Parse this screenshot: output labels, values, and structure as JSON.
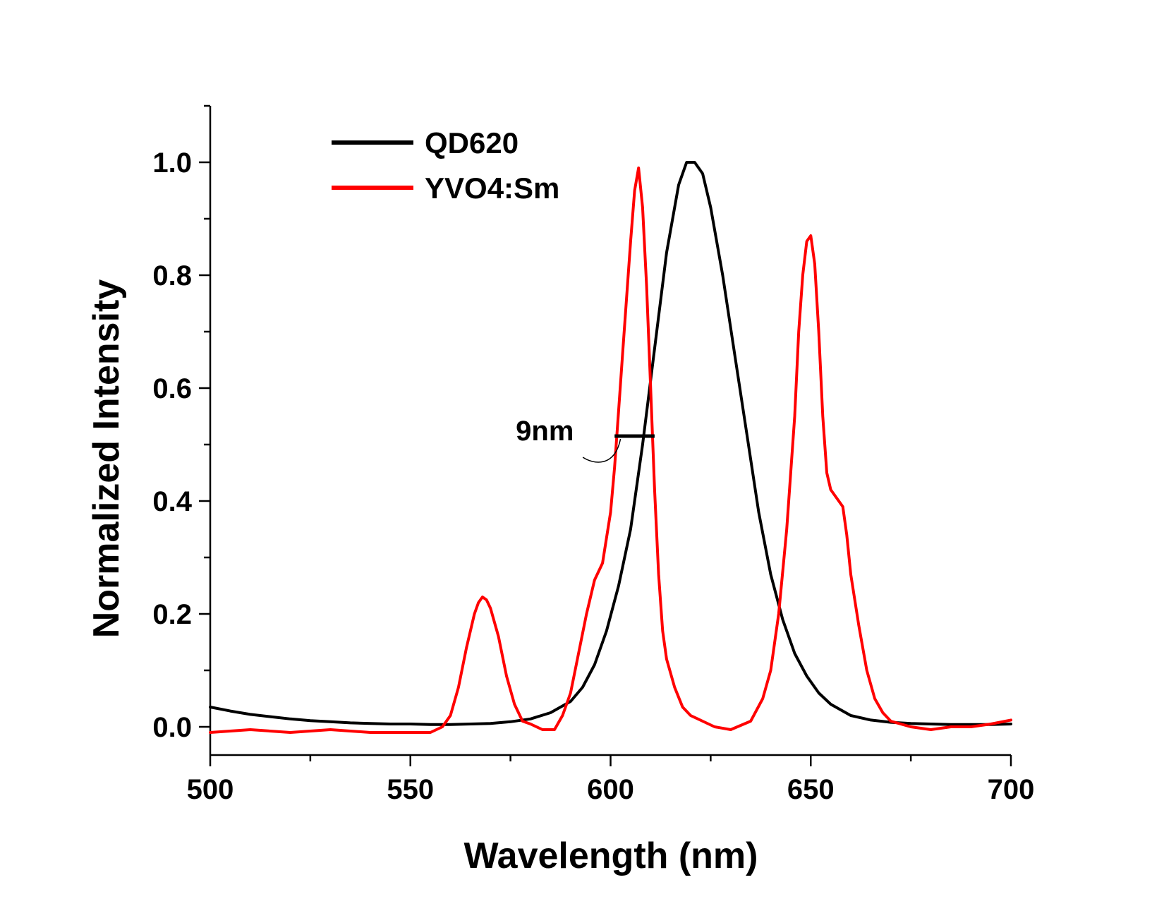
{
  "chart_data": {
    "type": "line",
    "xlabel": "Wavelength (nm)",
    "ylabel": "Normalized Intensity",
    "xlim": [
      500,
      700
    ],
    "ylim": [
      -0.05,
      1.1
    ],
    "x_ticks": [
      500,
      550,
      600,
      650,
      700
    ],
    "x_tick_labels": [
      "500",
      "550",
      "600",
      "650",
      "700"
    ],
    "y_ticks": [
      0.0,
      0.2,
      0.4,
      0.6,
      0.8,
      1.0
    ],
    "y_tick_labels": [
      "0.0",
      "0.2",
      "0.4",
      "0.6",
      "0.8",
      "1.0"
    ],
    "grid": false,
    "legend_position": "top-left",
    "series": [
      {
        "name": "QD620",
        "color": "#000000",
        "x": [
          500,
          505,
          510,
          515,
          520,
          525,
          530,
          535,
          540,
          545,
          550,
          555,
          560,
          565,
          570,
          575,
          580,
          585,
          590,
          593,
          596,
          599,
          602,
          605,
          608,
          611,
          614,
          617,
          619,
          621,
          623,
          625,
          628,
          631,
          634,
          637,
          640,
          643,
          646,
          649,
          652,
          655,
          660,
          665,
          670,
          675,
          680,
          685,
          690,
          695,
          700
        ],
        "y": [
          0.035,
          0.028,
          0.022,
          0.018,
          0.014,
          0.011,
          0.009,
          0.007,
          0.006,
          0.005,
          0.005,
          0.004,
          0.004,
          0.005,
          0.006,
          0.009,
          0.014,
          0.025,
          0.045,
          0.07,
          0.11,
          0.17,
          0.25,
          0.35,
          0.5,
          0.67,
          0.84,
          0.96,
          1.0,
          1.0,
          0.98,
          0.92,
          0.8,
          0.66,
          0.52,
          0.38,
          0.27,
          0.19,
          0.13,
          0.09,
          0.06,
          0.04,
          0.02,
          0.012,
          0.008,
          0.006,
          0.005,
          0.004,
          0.004,
          0.004,
          0.005
        ]
      },
      {
        "name": "YVO4:Sm",
        "color": "#ff0000",
        "x": [
          500,
          510,
          520,
          530,
          540,
          550,
          555,
          558,
          560,
          562,
          564,
          566,
          567,
          568,
          569,
          570,
          572,
          574,
          576,
          578,
          580,
          583,
          586,
          588,
          590,
          592,
          594,
          596,
          598,
          600,
          601,
          602,
          603,
          604,
          605,
          606,
          607,
          608,
          609,
          610,
          611,
          612,
          613,
          614,
          616,
          618,
          620,
          623,
          626,
          630,
          635,
          638,
          640,
          642,
          644,
          646,
          647,
          648,
          649,
          650,
          651,
          652,
          653,
          654,
          655,
          656,
          657,
          658,
          659,
          660,
          662,
          664,
          666,
          668,
          670,
          675,
          680,
          685,
          690,
          695,
          700
        ],
        "y": [
          -0.01,
          -0.005,
          -0.01,
          -0.005,
          -0.01,
          -0.01,
          -0.01,
          0.0,
          0.02,
          0.07,
          0.14,
          0.2,
          0.22,
          0.23,
          0.225,
          0.21,
          0.16,
          0.09,
          0.04,
          0.01,
          0.005,
          -0.005,
          -0.005,
          0.02,
          0.06,
          0.13,
          0.2,
          0.26,
          0.29,
          0.38,
          0.46,
          0.56,
          0.66,
          0.76,
          0.86,
          0.95,
          0.99,
          0.92,
          0.78,
          0.6,
          0.42,
          0.27,
          0.17,
          0.12,
          0.07,
          0.035,
          0.02,
          0.01,
          0.0,
          -0.005,
          0.01,
          0.05,
          0.1,
          0.2,
          0.35,
          0.55,
          0.7,
          0.8,
          0.86,
          0.87,
          0.82,
          0.7,
          0.55,
          0.45,
          0.42,
          0.41,
          0.4,
          0.39,
          0.34,
          0.27,
          0.18,
          0.1,
          0.05,
          0.025,
          0.01,
          0.0,
          -0.005,
          0.0,
          0.0,
          0.005,
          0.012
        ]
      }
    ],
    "annotations": [
      {
        "text": "9nm",
        "x": 601,
        "y": 0.515,
        "x_end": 611
      }
    ]
  }
}
